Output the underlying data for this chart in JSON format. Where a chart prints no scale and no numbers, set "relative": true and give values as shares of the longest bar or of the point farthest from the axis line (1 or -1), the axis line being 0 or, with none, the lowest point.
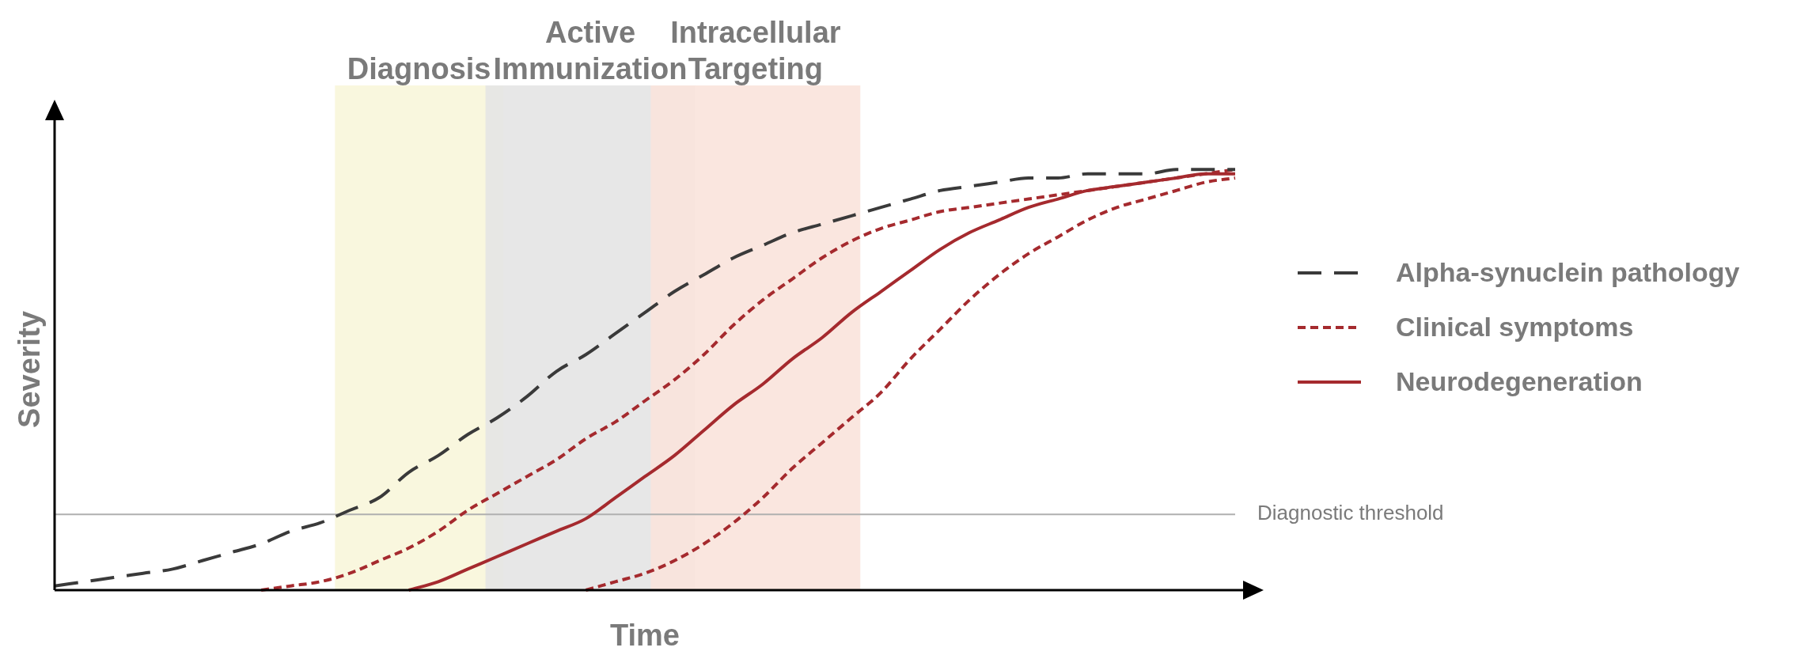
{
  "chart_data": {
    "type": "line",
    "relative": true,
    "xlabel": "Time",
    "ylabel": "Severity",
    "legend": "right",
    "marker": "none",
    "categories": [
      null,
      null,
      null,
      null,
      null,
      null,
      null,
      null,
      null,
      null,
      null,
      null,
      null,
      null,
      null,
      null,
      null,
      null,
      null,
      null,
      null,
      null,
      null,
      null,
      null,
      null,
      null,
      null,
      null,
      null,
      null,
      null,
      null,
      null,
      null,
      null,
      null,
      null,
      null,
      null,
      null
    ],
    "series": [
      {
        "name": "Alpha-synuclein pathology",
        "color": "#3a3a3a",
        "line_style": "dashed",
        "values": [
          0.01,
          0.02,
          0.03,
          0.04,
          0.05,
          0.07,
          0.09,
          0.11,
          0.14,
          0.16,
          0.19,
          0.22,
          0.28,
          0.32,
          0.37,
          0.41,
          0.46,
          0.52,
          0.56,
          0.61,
          0.66,
          0.71,
          0.75,
          0.79,
          0.82,
          0.85,
          0.87,
          0.89,
          0.91,
          0.93,
          0.95,
          0.96,
          0.97,
          0.98,
          0.98,
          0.99,
          0.99,
          0.99,
          1.0,
          1.0,
          1.0
        ]
      },
      {
        "name": "Clinical symptoms",
        "color": "#a52a2e",
        "line_style": "dotted",
        "values": [
          null,
          null,
          null,
          null,
          null,
          null,
          null,
          0.0,
          0.01,
          0.02,
          0.04,
          0.07,
          0.1,
          0.14,
          0.19,
          0.23,
          0.27,
          0.31,
          0.36,
          0.4,
          0.45,
          0.5,
          0.56,
          0.63,
          0.69,
          0.74,
          0.79,
          0.83,
          0.86,
          0.88,
          0.9,
          0.91,
          0.92,
          0.93,
          0.94,
          0.95,
          0.96,
          0.97,
          0.98,
          0.99,
          1.0
        ]
      },
      {
        "name": "Neurodegeneration",
        "color": "#a52a2e",
        "line_style": "solid",
        "values": [
          null,
          null,
          null,
          null,
          null,
          null,
          null,
          null,
          null,
          null,
          null,
          null,
          0.0,
          0.02,
          0.05,
          0.08,
          0.11,
          0.14,
          0.17,
          0.22,
          0.27,
          0.32,
          0.38,
          0.44,
          0.49,
          0.55,
          0.6,
          0.66,
          0.71,
          0.76,
          0.81,
          0.85,
          0.88,
          0.91,
          0.93,
          0.95,
          0.96,
          0.97,
          0.98,
          0.99,
          0.99
        ]
      },
      {
        "color": "#a52a2e",
        "line_style": "dotted",
        "values": [
          null,
          null,
          null,
          null,
          null,
          null,
          null,
          null,
          null,
          null,
          null,
          null,
          null,
          null,
          null,
          null,
          null,
          null,
          0.0,
          0.02,
          0.04,
          0.07,
          0.11,
          0.16,
          0.22,
          0.29,
          0.35,
          0.41,
          0.47,
          0.55,
          0.62,
          0.69,
          0.75,
          0.8,
          0.84,
          0.88,
          0.91,
          0.93,
          0.95,
          0.97,
          0.98
        ]
      }
    ],
    "annotations": [
      "Diagnosis",
      "Active Immunization",
      "Intracellular Targeting"
    ],
    "ref_lines": [
      {
        "axis": "y",
        "value": 0.18,
        "label": "Diagnostic threshold",
        "color": "#b0b0b0"
      }
    ]
  }
}
